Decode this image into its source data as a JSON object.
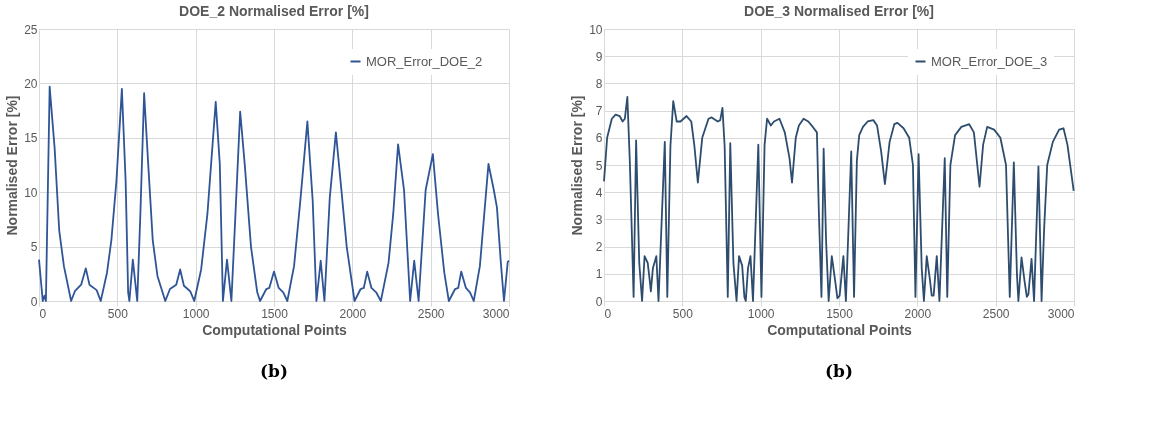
{
  "chart_data": [
    {
      "type": "line",
      "title": "DOE_2 Normalised Error [%]",
      "xlabel": "Computational Points",
      "ylabel": "Normalised Error [%]",
      "xlim": [
        0,
        3000
      ],
      "xticks": [
        0,
        500,
        1000,
        1500,
        2000,
        2500,
        3000
      ],
      "ylim": [
        0,
        25
      ],
      "yticks": [
        0,
        5,
        10,
        15,
        20,
        25
      ],
      "grid": true,
      "legend": "top right",
      "annotations": [
        "(b)"
      ],
      "series": [
        {
          "name": "MOR_Error_DOE_2",
          "color": "#2f5597",
          "x": [
            0,
            24,
            36,
            44,
            68,
            100,
            129,
            159,
            205,
            229,
            269,
            299,
            322,
            368,
            394,
            434,
            462,
            494,
            529,
            553,
            569,
            577,
            599,
            627,
            647,
            671,
            697,
            726,
            756,
            806,
            836,
            876,
            901,
            925,
            965,
            991,
            1035,
            1075,
            1128,
            1154,
            1174,
            1200,
            1228,
            1254,
            1284,
            1313,
            1353,
            1393,
            1411,
            1451,
            1470,
            1500,
            1530,
            1559,
            1585,
            1628,
            1668,
            1713,
            1747,
            1771,
            1798,
            1822,
            1856,
            1895,
            1925,
            1964,
            2014,
            2053,
            2073,
            2095,
            2122,
            2152,
            2182,
            2231,
            2261,
            2292,
            2330,
            2369,
            2395,
            2423,
            2468,
            2514,
            2547,
            2587,
            2616,
            2656,
            2676,
            2695,
            2725,
            2751,
            2775,
            2814,
            2869,
            2903,
            2923,
            2948,
            2968,
            2992,
            3000
          ],
          "values": [
            3.8,
            0,
            0.5,
            0,
            19.7,
            14,
            6.5,
            3.2,
            0,
            0.9,
            1.5,
            3,
            1.5,
            1,
            0,
            2.6,
            5.6,
            11,
            19.5,
            11,
            0.8,
            0,
            3.8,
            0,
            8,
            19.1,
            12.6,
            5.6,
            2.3,
            0,
            1.1,
            1.5,
            2.9,
            1.4,
            0.9,
            0,
            2.9,
            8,
            18.3,
            12.6,
            0,
            3.8,
            0,
            8,
            17.4,
            12.6,
            5,
            0.8,
            0,
            1.1,
            1.2,
            2.7,
            1.2,
            0.8,
            0,
            3.2,
            9.2,
            16.5,
            9.2,
            0,
            3.7,
            0,
            9.5,
            15.5,
            11,
            5,
            0,
            1.1,
            1.2,
            2.7,
            1.2,
            0.8,
            0,
            3.5,
            8,
            14.4,
            10.2,
            0,
            3.7,
            0,
            10.2,
            13.5,
            8,
            2.6,
            0,
            1.1,
            1.2,
            2.7,
            1.2,
            0.8,
            0,
            3.2,
            12.6,
            10.2,
            8.6,
            3.5,
            0,
            3.6,
            3.7
          ]
        }
      ]
    },
    {
      "type": "line",
      "title": "DOE_3 Normalised Error [%]",
      "xlabel": "Computational Points",
      "ylabel": "Normalised Error [%]",
      "xlim": [
        0,
        3000
      ],
      "xticks": [
        0,
        500,
        1000,
        1500,
        2000,
        2500,
        3000
      ],
      "ylim": [
        0,
        10
      ],
      "yticks": [
        0,
        1,
        2,
        3,
        4,
        5,
        6,
        7,
        8,
        9,
        10
      ],
      "grid": true,
      "legend": "top right",
      "annotations": [
        "(b)"
      ],
      "series": [
        {
          "name": "MOR_Error_DOE_3",
          "color": "#2e4d6e",
          "x": [
            0,
            20,
            50,
            74,
            100,
            119,
            133,
            149,
            165,
            189,
            205,
            225,
            243,
            259,
            279,
            293,
            299,
            312,
            334,
            348,
            388,
            404,
            424,
            442,
            464,
            488,
            527,
            557,
            577,
            599,
            627,
            667,
            687,
            726,
            742,
            756,
            770,
            790,
            806,
            826,
            846,
            862,
            882,
            896,
            905,
            919,
            935,
            951,
            985,
            1005,
            1025,
            1041,
            1065,
            1085,
            1120,
            1154,
            1184,
            1200,
            1224,
            1244,
            1274,
            1304,
            1333,
            1359,
            1371,
            1388,
            1402,
            1418,
            1434,
            1454,
            1474,
            1490,
            1504,
            1528,
            1544,
            1578,
            1596,
            1614,
            1629,
            1653,
            1683,
            1719,
            1743,
            1769,
            1793,
            1823,
            1853,
            1873,
            1912,
            1948,
            1972,
            1988,
            2008,
            2028,
            2042,
            2060,
            2080,
            2092,
            2104,
            2124,
            2141,
            2175,
            2191,
            2211,
            2241,
            2281,
            2331,
            2361,
            2397,
            2420,
            2446,
            2490,
            2530,
            2566,
            2590,
            2616,
            2636,
            2645,
            2665,
            2685,
            2699,
            2709,
            2729,
            2745,
            2773,
            2793,
            2809,
            2829,
            2865,
            2905,
            2933,
            2958,
            2998
          ],
          "values": [
            4.4,
            6,
            6.7,
            6.85,
            6.8,
            6.6,
            6.7,
            7.5,
            5.1,
            0.15,
            5.9,
            1.4,
            0,
            1.65,
            1.4,
            0.7,
            0.35,
            1.2,
            1.65,
            0,
            5.85,
            0.15,
            5.7,
            7.35,
            6.6,
            6.6,
            6.8,
            6.6,
            5.7,
            4.35,
            6,
            6.7,
            6.75,
            6.6,
            6.65,
            7.1,
            5.7,
            0.15,
            5.8,
            1.4,
            0,
            1.65,
            1.3,
            0.15,
            0,
            1.2,
            1.65,
            0,
            5.75,
            0.15,
            5.75,
            6.7,
            6.45,
            6.6,
            6.7,
            6.2,
            5.25,
            4.35,
            6,
            6.45,
            6.7,
            6.6,
            6.4,
            6.2,
            3.35,
            0.15,
            5.6,
            2.15,
            0,
            1.65,
            0.8,
            0.1,
            0.2,
            1.65,
            0,
            5.5,
            0.15,
            5.15,
            6.1,
            6.4,
            6.6,
            6.65,
            6.45,
            5.5,
            4.3,
            5.85,
            6.5,
            6.55,
            6.35,
            6,
            5,
            0.15,
            5.4,
            1.2,
            0,
            1.65,
            0.8,
            0.2,
            0.2,
            1.65,
            0,
            5.25,
            0.15,
            5,
            6.1,
            6.4,
            6.5,
            6.2,
            4.2,
            5.75,
            6.4,
            6.3,
            6,
            5,
            0.15,
            5.1,
            0.95,
            0,
            1.6,
            0.7,
            0.15,
            0.25,
            1.55,
            0,
            4.95,
            0,
            2.6,
            5,
            5.85,
            6.3,
            6.35,
            5.75,
            4.05
          ]
        }
      ]
    }
  ]
}
